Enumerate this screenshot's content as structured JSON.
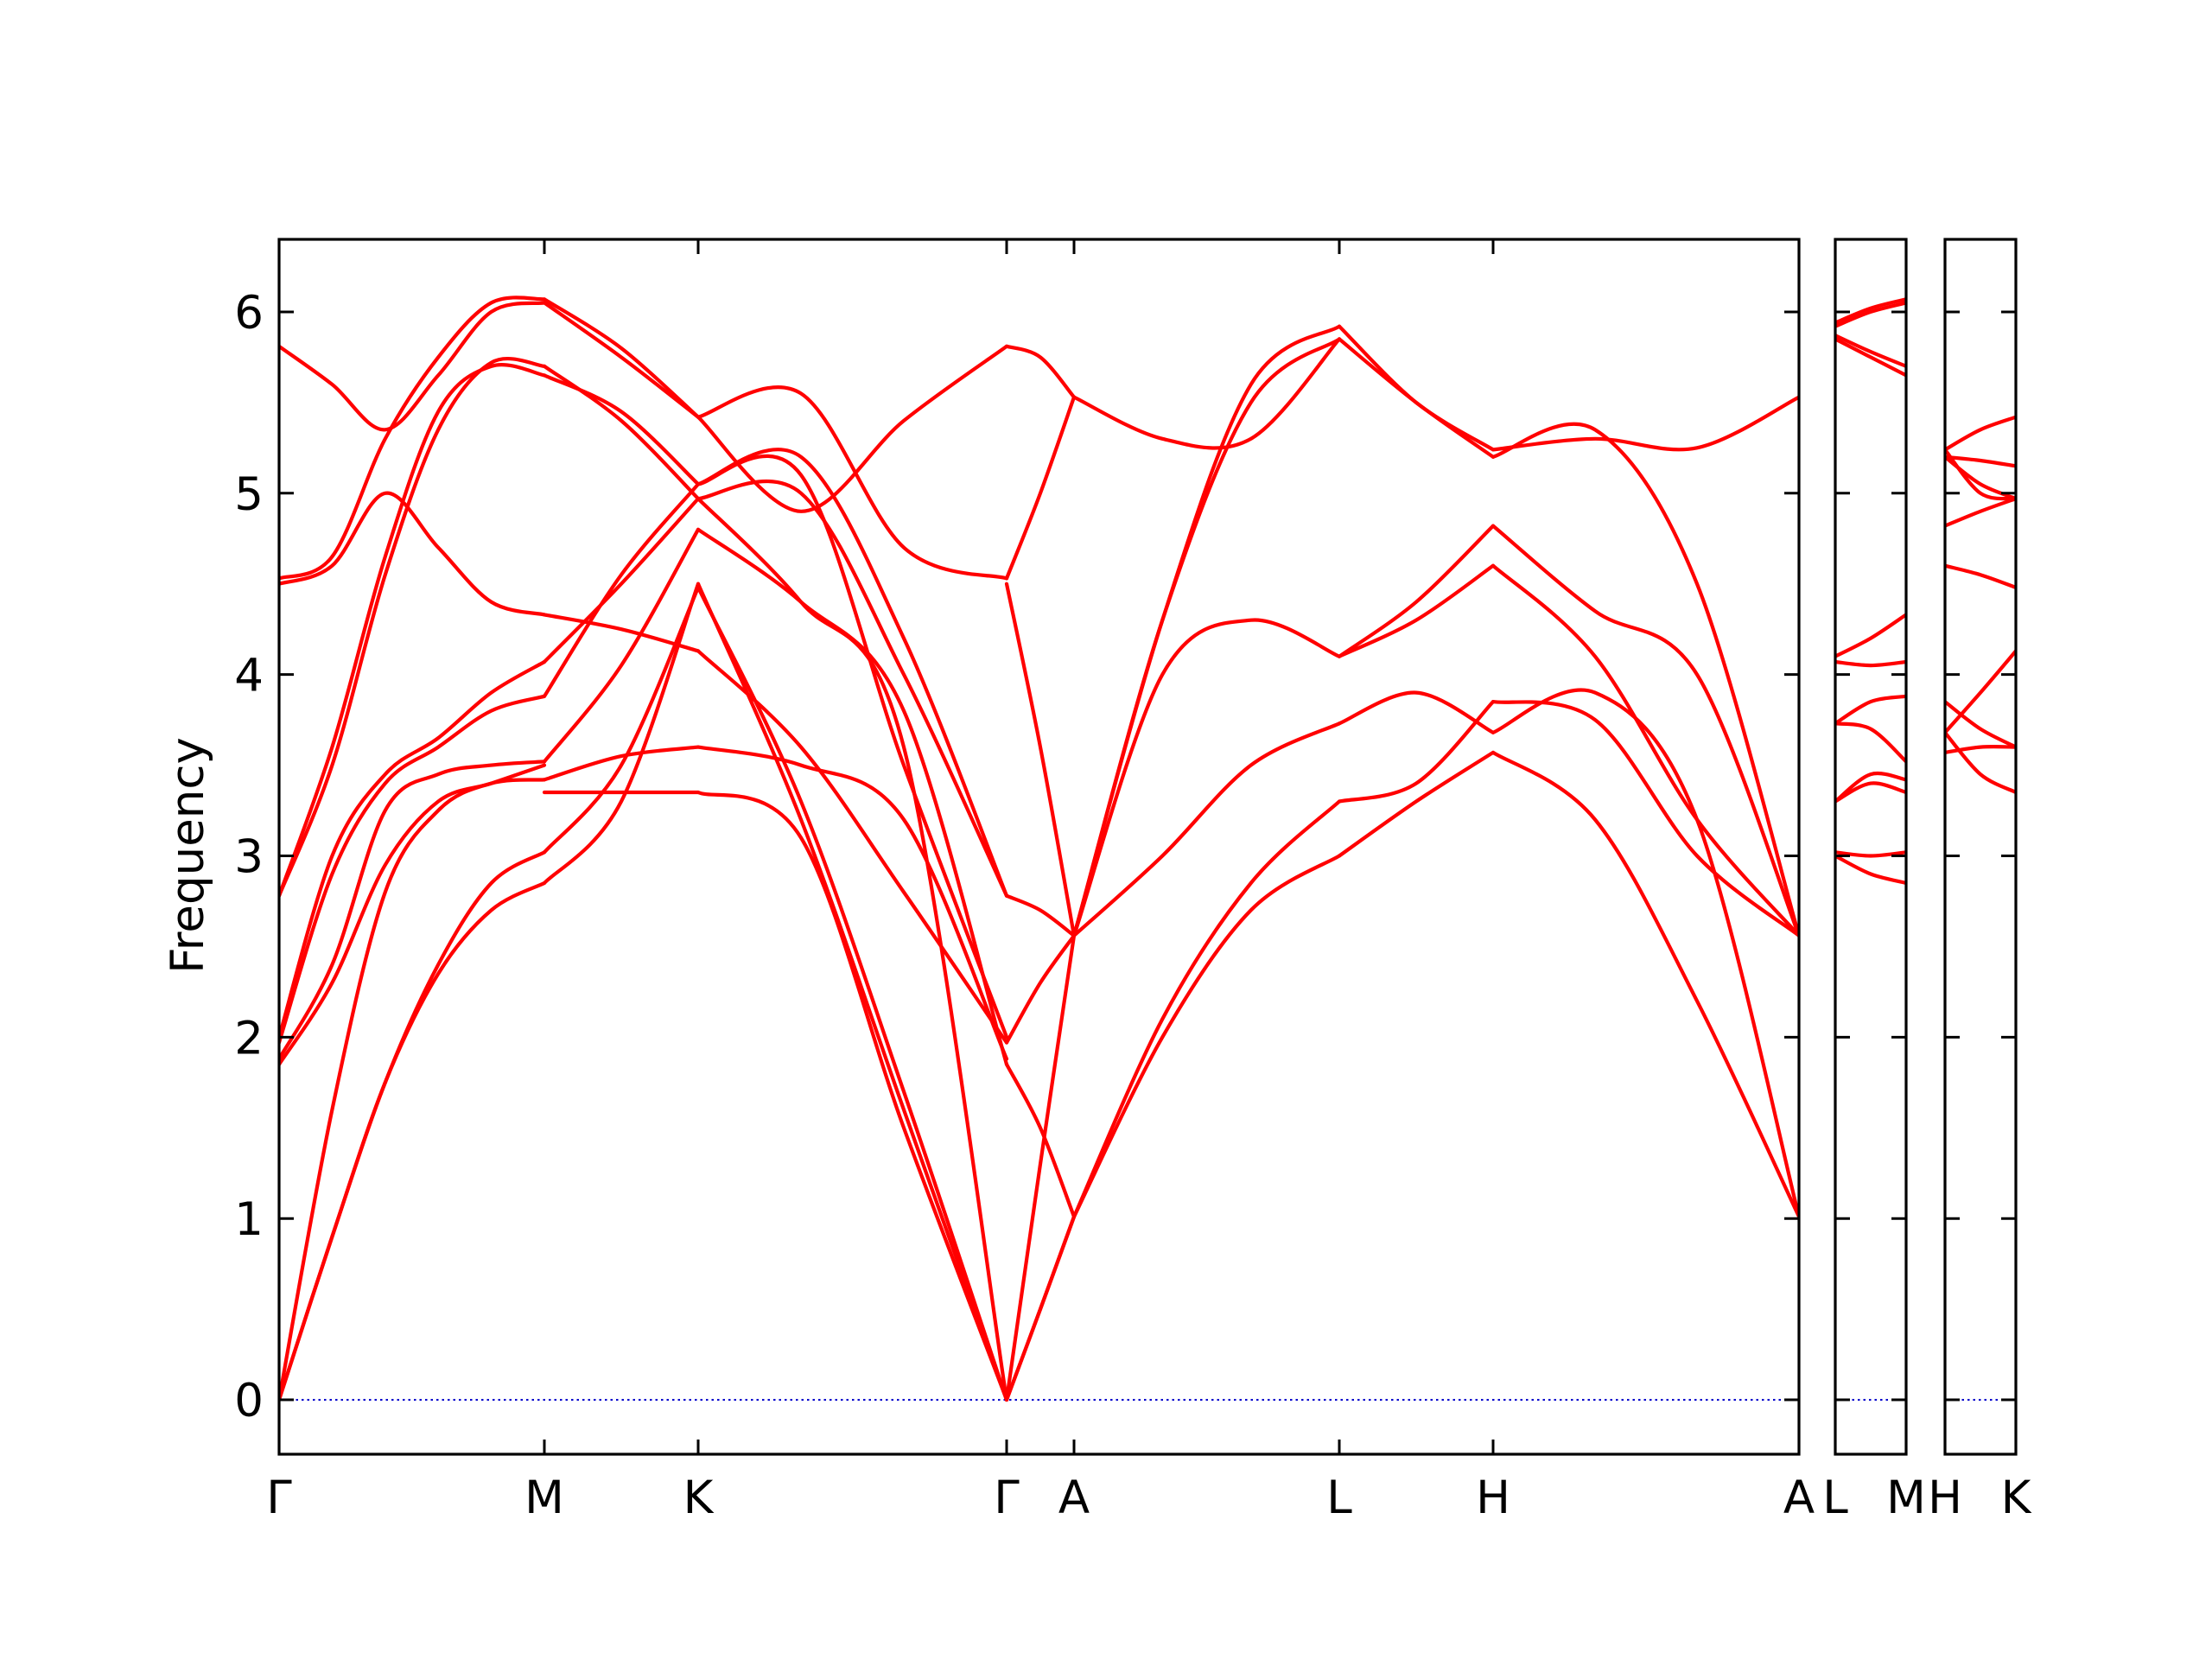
{
  "chart_data": {
    "type": "line",
    "ylabel": "Frequency",
    "ylim": [
      -0.3,
      6.4
    ],
    "yticks": [
      0,
      1,
      2,
      3,
      4,
      5,
      6
    ],
    "grid": false,
    "band_color": "#ff0000",
    "zero_line_color": "#0000cc",
    "panels": [
      {
        "labels": [
          "Γ",
          "M",
          "K",
          "Γ",
          "A",
          "L",
          "H",
          "A"
        ],
        "segments": [
          {
            "from": "Γ",
            "to": "M",
            "bands": [
              [
                0,
                0.9,
                1.75,
                2.35,
                2.7,
                2.85
              ],
              [
                0,
                0.9,
                1.75,
                2.4,
                2.85,
                3.02
              ],
              [
                0,
                1.6,
                2.8,
                3.25,
                3.4,
                3.42
              ],
              [
                1.85,
                2.3,
                2.95,
                3.3,
                3.4,
                3.5
              ],
              [
                1.88,
                2.4,
                3.25,
                3.45,
                3.5,
                3.52
              ],
              [
                1.97,
                2.9,
                3.4,
                3.6,
                3.8,
                3.88
              ],
              [
                2.0,
                3.0,
                3.45,
                3.65,
                3.9,
                4.07
              ],
              [
                2.78,
                3.6,
                4.65,
                5.45,
                5.7,
                5.65
              ],
              [
                2.78,
                3.5,
                4.55,
                5.35,
                5.72,
                5.7
              ],
              [
                4.5,
                4.6,
                5.0,
                4.7,
                4.4,
                4.33
              ],
              [
                4.53,
                4.65,
                5.3,
                5.75,
                6.05,
                6.07
              ],
              [
                5.81,
                5.6,
                5.35,
                5.65,
                6.0,
                6.05
              ]
            ]
          },
          {
            "from": "M",
            "to": "K",
            "bands": [
              [
                2.85,
                3.3,
                4.5
              ],
              [
                3.02,
                3.5,
                4.48
              ],
              [
                3.35,
                3.35,
                3.35
              ],
              [
                3.42,
                3.55,
                3.6
              ],
              [
                3.52,
                4.05,
                4.8
              ],
              [
                3.88,
                4.55,
                5.05
              ],
              [
                4.07,
                4.5,
                4.97
              ],
              [
                4.33,
                4.25,
                4.13
              ],
              [
                5.65,
                5.45,
                5.05
              ],
              [
                5.7,
                5.4,
                4.97
              ],
              [
                6.05,
                5.75,
                5.42
              ],
              [
                6.07,
                5.8,
                5.42
              ]
            ]
          },
          {
            "from": "K",
            "to": "Γ",
            "bands": [
              [
                4.5,
                3.2,
                1.6,
                0
              ],
              [
                4.48,
                3.3,
                1.7,
                0
              ],
              [
                3.35,
                3.1,
                1.5,
                0
              ],
              [
                3.6,
                3.5,
                3.2,
                1.88
              ],
              [
                4.8,
                4.4,
                3.8,
                1.85
              ],
              [
                5.05,
                5.2,
                4.2,
                2.78
              ],
              [
                4.97,
                5.0,
                4.0,
                2.78
              ],
              [
                4.13,
                3.6,
                2.8,
                1.97
              ],
              [
                5.05,
                5.1,
                3.5,
                2.0
              ],
              [
                4.97,
                4.4,
                3.6,
                0
              ],
              [
                5.42,
                5.55,
                4.7,
                4.53
              ],
              [
                5.42,
                4.9,
                5.4,
                5.81
              ]
            ]
          },
          {
            "from": "Γ",
            "to": "A",
            "bands": [
              [
                0,
                0.5,
                1.01
              ],
              [
                0,
                0.5,
                1.01
              ],
              [
                0,
                1.3,
                2.56
              ],
              [
                1.85,
                1.5,
                1.01
              ],
              [
                1.97,
                2.3,
                2.56
              ],
              [
                2.78,
                2.7,
                2.56
              ],
              [
                4.5,
                3.6,
                2.56
              ],
              [
                4.53,
                5.0,
                5.53
              ],
              [
                5.81,
                5.75,
                5.53
              ]
            ]
          },
          {
            "from": "A",
            "to": "L",
            "bands": [
              [
                1.01,
                2.0,
                2.7,
                3.0
              ],
              [
                1.01,
                2.1,
                2.85,
                3.3
              ],
              [
                2.56,
                3.0,
                3.5,
                3.73
              ],
              [
                2.56,
                4.0,
                4.3,
                4.1
              ],
              [
                2.56,
                4.3,
                5.5,
                5.85
              ],
              [
                2.56,
                4.3,
                5.6,
                5.92
              ],
              [
                5.53,
                5.3,
                5.3,
                5.85
              ]
            ]
          },
          {
            "from": "L",
            "to": "H",
            "bands": [
              [
                3.0,
                3.3,
                3.57
              ],
              [
                3.3,
                3.4,
                3.85
              ],
              [
                3.73,
                3.9,
                3.68
              ],
              [
                4.1,
                4.3,
                4.6
              ],
              [
                4.1,
                4.4,
                4.82
              ],
              [
                5.85,
                5.5,
                5.2
              ],
              [
                5.92,
                5.5,
                5.24
              ]
            ]
          },
          {
            "from": "H",
            "to": "A",
            "bands": [
              [
                3.57,
                3.2,
                2.2,
                1.01
              ],
              [
                3.68,
                3.9,
                3.2,
                1.01
              ],
              [
                3.85,
                3.75,
                3.0,
                2.56
              ],
              [
                4.6,
                4.1,
                3.2,
                2.56
              ],
              [
                4.82,
                4.35,
                4.0,
                2.56
              ],
              [
                5.2,
                5.35,
                4.5,
                2.56
              ],
              [
                5.24,
                5.3,
                5.25,
                5.53
              ]
            ]
          }
        ]
      },
      {
        "labels": [
          "L",
          "M"
        ],
        "segments": [
          {
            "from": "L",
            "to": "M",
            "bands": [
              [
                3.0,
                2.9,
                2.85
              ],
              [
                3.02,
                3.0,
                3.02
              ],
              [
                3.3,
                3.4,
                3.35
              ],
              [
                3.3,
                3.45,
                3.42
              ],
              [
                3.73,
                3.7,
                3.52
              ],
              [
                3.73,
                3.85,
                3.88
              ],
              [
                4.07,
                4.05,
                4.07
              ],
              [
                4.1,
                4.2,
                4.33
              ],
              [
                5.85,
                5.75,
                5.65
              ],
              [
                5.87,
                5.78,
                5.7
              ],
              [
                5.92,
                6.0,
                6.05
              ],
              [
                5.94,
                6.02,
                6.07
              ]
            ]
          }
        ]
      },
      {
        "labels": [
          "H",
          "K"
        ],
        "segments": [
          {
            "from": "H",
            "to": "K",
            "bands": [
              [
                3.57,
                3.6,
                3.6
              ],
              [
                3.68,
                3.45,
                3.35
              ],
              [
                3.68,
                3.9,
                4.13
              ],
              [
                3.85,
                3.7,
                3.6
              ],
              [
                4.6,
                4.55,
                4.48
              ],
              [
                4.82,
                4.9,
                4.97
              ],
              [
                5.2,
                5.18,
                5.15
              ],
              [
                5.24,
                5.35,
                5.42
              ],
              [
                5.2,
                5.05,
                4.97
              ],
              [
                5.24,
                5.0,
                4.97
              ]
            ]
          }
        ]
      }
    ]
  }
}
